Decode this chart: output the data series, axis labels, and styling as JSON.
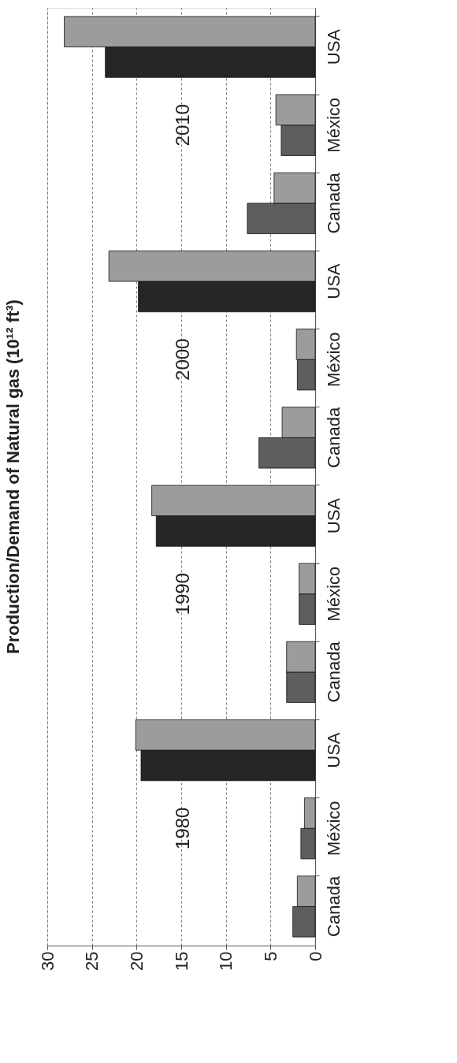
{
  "chart_data": {
    "type": "bar",
    "orientation": "horizontal",
    "title": "Production/Demand of Natural gas (10¹² ft³)",
    "categories": [
      "USA",
      "México",
      "Canada",
      "USA",
      "México",
      "Canada",
      "USA",
      "México",
      "Canada",
      "USA",
      "México",
      "Canada"
    ],
    "series": [
      {
        "colors": [
          "#262626",
          "#5e5e5e",
          "#5e5e5e",
          "#262626",
          "#5e5e5e",
          "#5e5e5e",
          "#262626",
          "#5e5e5e",
          "#5e5e5e",
          "#262626",
          "#5e5e5e",
          "#5e5e5e"
        ],
        "values": [
          23.5,
          3.8,
          7.6,
          19.8,
          2.0,
          6.3,
          17.8,
          1.8,
          3.2,
          19.5,
          1.6,
          2.5
        ]
      },
      {
        "color": "#9c9c9c",
        "values": [
          28.1,
          4.4,
          4.6,
          23.1,
          2.1,
          3.7,
          18.3,
          1.8,
          3.2,
          20.1,
          1.2,
          2.0
        ]
      }
    ],
    "xlim": [
      30,
      0
    ],
    "xticks": [
      0,
      5,
      10,
      15,
      20,
      25,
      30
    ],
    "grid": "x",
    "annotations": [
      "2010",
      "2000",
      "1990",
      "1980"
    ]
  }
}
